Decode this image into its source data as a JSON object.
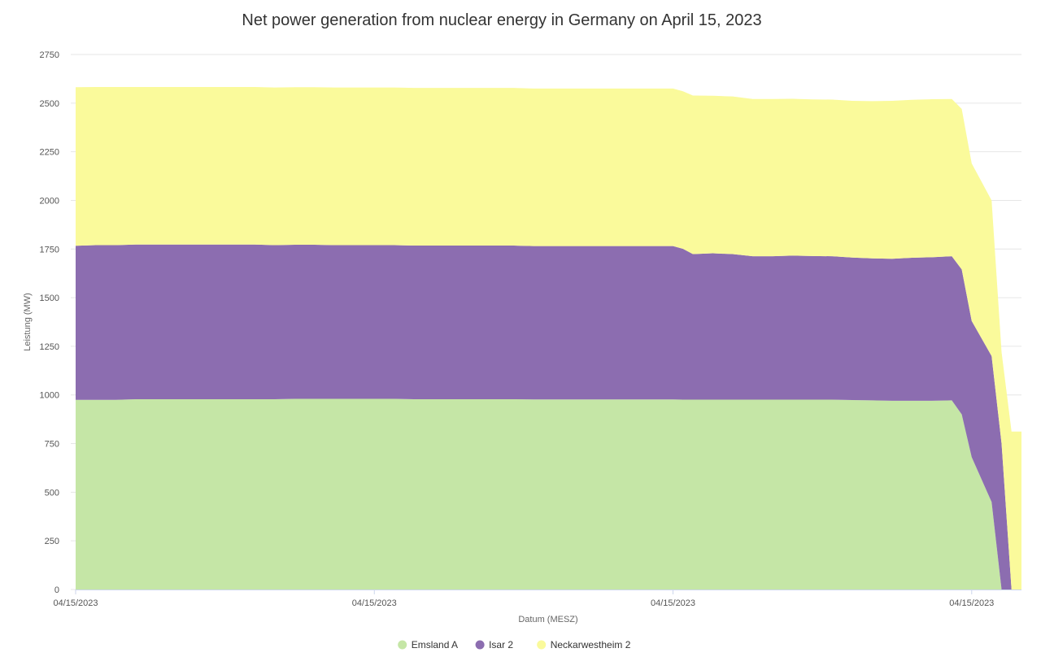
{
  "chart_data": {
    "type": "area",
    "stacked": true,
    "title": "Net power generation from nuclear energy in Germany on April 15, 2023",
    "xlabel": "Datum (MESZ)",
    "ylabel": "Leistung (MW)",
    "ylim": [
      0,
      2750
    ],
    "yticks": [
      0,
      250,
      500,
      750,
      1000,
      1250,
      1500,
      1750,
      2000,
      2250,
      2500,
      2750
    ],
    "xlim": [
      0,
      23.75
    ],
    "x_tick_positions": [
      0,
      7.5,
      15,
      22.5
    ],
    "x_tick_labels": [
      "04/15/2023",
      "04/15/2023",
      "04/15/2023",
      "04/15/2023"
    ],
    "grid": true,
    "legend_position": "bottom-center",
    "x": [
      0,
      0.5,
      1,
      1.5,
      2,
      2.5,
      3,
      3.5,
      4,
      4.5,
      5,
      5.5,
      6,
      6.5,
      7,
      7.5,
      8,
      8.5,
      9,
      9.5,
      10,
      10.5,
      11,
      11.5,
      12,
      12.5,
      13,
      13.5,
      14,
      14.5,
      15,
      15.25,
      15.5,
      16,
      16.5,
      17,
      17.5,
      18,
      18.5,
      19,
      19.5,
      20,
      20.5,
      21,
      21.5,
      22,
      22.25,
      22.5,
      23,
      23.25,
      23.5,
      23.75
    ],
    "series": [
      {
        "name": "Emsland A",
        "color": "#c5e6a6",
        "values": [
          975,
          975,
          975,
          978,
          978,
          978,
          978,
          978,
          978,
          978,
          978,
          980,
          980,
          980,
          980,
          980,
          980,
          978,
          978,
          978,
          978,
          978,
          978,
          977,
          977,
          977,
          977,
          977,
          977,
          977,
          977,
          976,
          976,
          976,
          976,
          976,
          976,
          976,
          976,
          976,
          974,
          972,
          970,
          970,
          970,
          972,
          900,
          680,
          450,
          0,
          0,
          0
        ]
      },
      {
        "name": "Isar 2",
        "color": "#8c6db0",
        "values": [
          792,
          795,
          795,
          795,
          795,
          795,
          795,
          795,
          795,
          795,
          792,
          792,
          792,
          790,
          790,
          790,
          790,
          790,
          790,
          790,
          790,
          790,
          790,
          788,
          788,
          788,
          788,
          788,
          788,
          788,
          788,
          775,
          748,
          752,
          748,
          737,
          737,
          740,
          738,
          737,
          732,
          730,
          730,
          735,
          738,
          741,
          745,
          700,
          750,
          750,
          0,
          0
        ]
      },
      {
        "name": "Neckarwestheim 2",
        "color": "#fafa9b",
        "values": [
          815,
          813,
          813,
          810,
          810,
          810,
          810,
          810,
          810,
          810,
          810,
          810,
          810,
          810,
          810,
          810,
          810,
          810,
          810,
          810,
          810,
          810,
          810,
          810,
          810,
          810,
          810,
          810,
          810,
          810,
          810,
          810,
          815,
          810,
          810,
          808,
          808,
          806,
          805,
          805,
          806,
          808,
          812,
          812,
          812,
          808,
          825,
          810,
          800,
          470,
          812,
          812
        ]
      }
    ]
  }
}
